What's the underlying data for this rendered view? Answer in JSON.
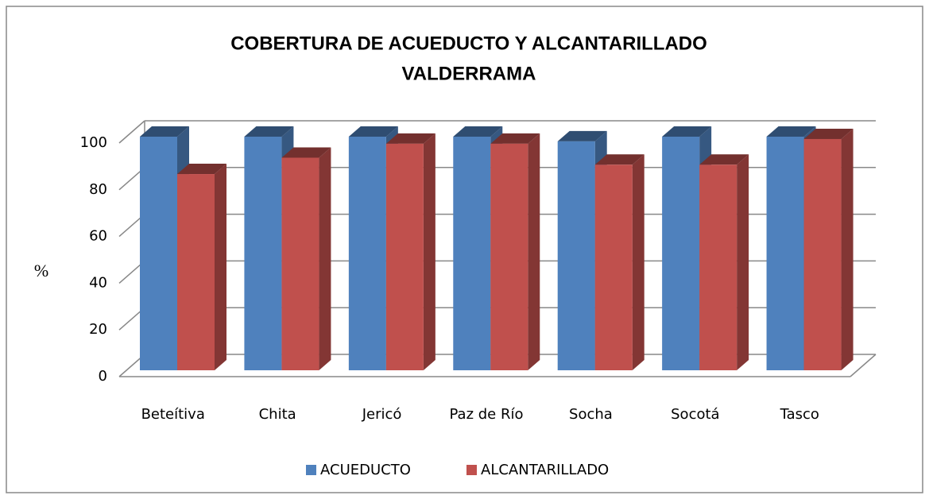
{
  "chart_data": {
    "type": "bar3d",
    "title": [
      "COBERTURA DE ACUEDUCTO Y ALCANTARILLADO",
      "VALDERRAMA"
    ],
    "y_label": "%",
    "categories": [
      "Beteítiva",
      "Chita",
      "Jericó",
      "Paz de Río",
      "Socha",
      "Socotá",
      "Tasco"
    ],
    "series": [
      {
        "name": "ACUEDUCTO",
        "color": "#4f81bd",
        "values": [
          100,
          100,
          100,
          100,
          98,
          100,
          100
        ]
      },
      {
        "name": "ALCANTARILLADO",
        "color": "#c0504d",
        "values": [
          84,
          91,
          97,
          97,
          88,
          88,
          99
        ]
      }
    ],
    "ylim": [
      0,
      100
    ],
    "yticks": [
      0,
      20,
      40,
      60,
      80,
      100
    ],
    "grid": true,
    "legend": "bottom"
  }
}
